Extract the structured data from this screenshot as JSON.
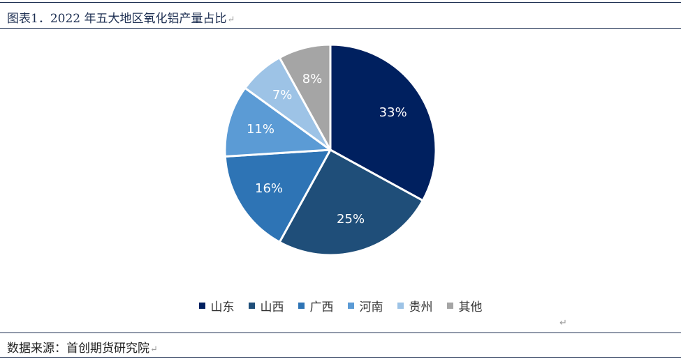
{
  "title": "图表1．2022 年五大地区氧化铝产量占比",
  "source": "数据来源：首创期货研究院",
  "return_mark": "↵",
  "chart_data": {
    "type": "pie",
    "title": "图表1．2022 年五大地区氧化铝产量占比",
    "legend_position": "bottom",
    "slices": [
      {
        "name": "山东",
        "value": 33,
        "label": "33%",
        "color": "#00205f"
      },
      {
        "name": "山西",
        "value": 25,
        "label": "25%",
        "color": "#1f4e79"
      },
      {
        "name": "广西",
        "value": 16,
        "label": "16%",
        "color": "#2e74b5"
      },
      {
        "name": "河南",
        "value": 11,
        "label": "11%",
        "color": "#5b9bd5"
      },
      {
        "name": "贵州",
        "value": 7,
        "label": "7%",
        "color": "#9dc3e6"
      },
      {
        "name": "其他",
        "value": 8,
        "label": "8%",
        "color": "#a5a5a5"
      }
    ]
  }
}
